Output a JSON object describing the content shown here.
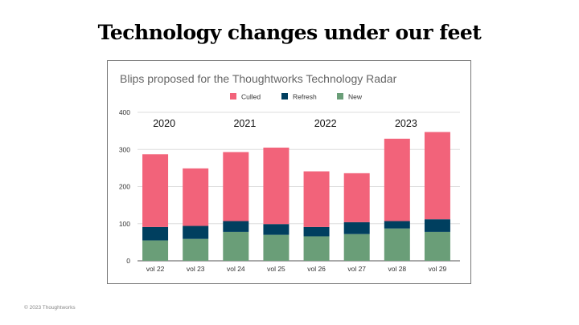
{
  "slide": {
    "title": "Technology changes under our feet",
    "footer": "© 2023 Thoughtworks"
  },
  "chart_data": {
    "type": "bar",
    "stacked": true,
    "title": "Blips proposed for the Thoughtworks Technology Radar",
    "categories": [
      "vol 22",
      "vol 23",
      "vol 24",
      "vol 25",
      "vol 26",
      "vol 27",
      "vol 28",
      "vol 29"
    ],
    "series": [
      {
        "name": "New",
        "color": "#6a9e78",
        "values": [
          55,
          59,
          78,
          70,
          66,
          72,
          87,
          78
        ]
      },
      {
        "name": "Refresh",
        "color": "#003f5f",
        "values": [
          36,
          35,
          29,
          29,
          25,
          32,
          20,
          34
        ]
      },
      {
        "name": "Culled",
        "color": "#f2637a",
        "values": [
          196,
          155,
          186,
          206,
          150,
          132,
          222,
          235
        ]
      }
    ],
    "legend_order": [
      "Culled",
      "Refresh",
      "New"
    ],
    "legend_position": "top",
    "ylim": [
      0,
      400
    ],
    "yticks": [
      "0",
      "100",
      "200",
      "300",
      "400"
    ],
    "grid": true,
    "annotations": [
      {
        "text": "2020",
        "between": [
          "vol 22",
          "vol 23"
        ]
      },
      {
        "text": "2021",
        "between": [
          "vol 24",
          "vol 25"
        ]
      },
      {
        "text": "2022",
        "between": [
          "vol 26",
          "vol 27"
        ]
      },
      {
        "text": "2023",
        "between": [
          "vol 28",
          "vol 29"
        ]
      }
    ],
    "xlabel": "",
    "ylabel": ""
  }
}
